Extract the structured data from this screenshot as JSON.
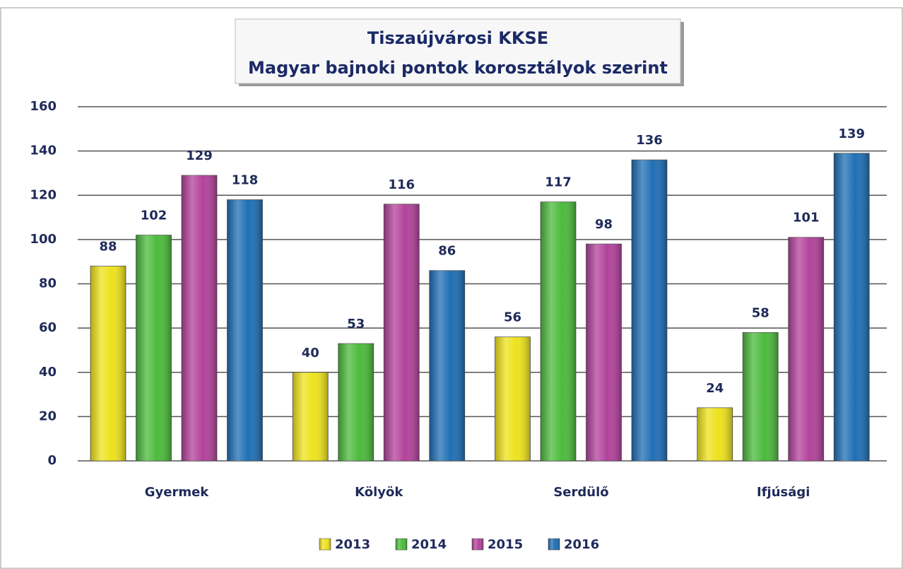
{
  "chart_data": {
    "type": "bar",
    "title": "Tiszaújvárosi KKSE",
    "subtitle": "Magyar bajnoki pontok korosztályok szerint",
    "categories": [
      "Gyermek",
      "Kölyök",
      "Serdülő",
      "Ifjúsági"
    ],
    "series": [
      {
        "name": "2013",
        "color": "#eee21c",
        "values": [
          88,
          40,
          56,
          24
        ]
      },
      {
        "name": "2014",
        "color": "#4cbb3c",
        "values": [
          102,
          53,
          117,
          58
        ]
      },
      {
        "name": "2015",
        "color": "#b3429c",
        "values": [
          129,
          116,
          98,
          101
        ]
      },
      {
        "name": "2016",
        "color": "#1f6fb5",
        "values": [
          118,
          86,
          136,
          139
        ]
      }
    ],
    "ylim": [
      0,
      160
    ],
    "yticks": [
      0,
      20,
      40,
      60,
      80,
      100,
      120,
      140,
      160
    ],
    "grid": true,
    "legend": "bottom"
  }
}
